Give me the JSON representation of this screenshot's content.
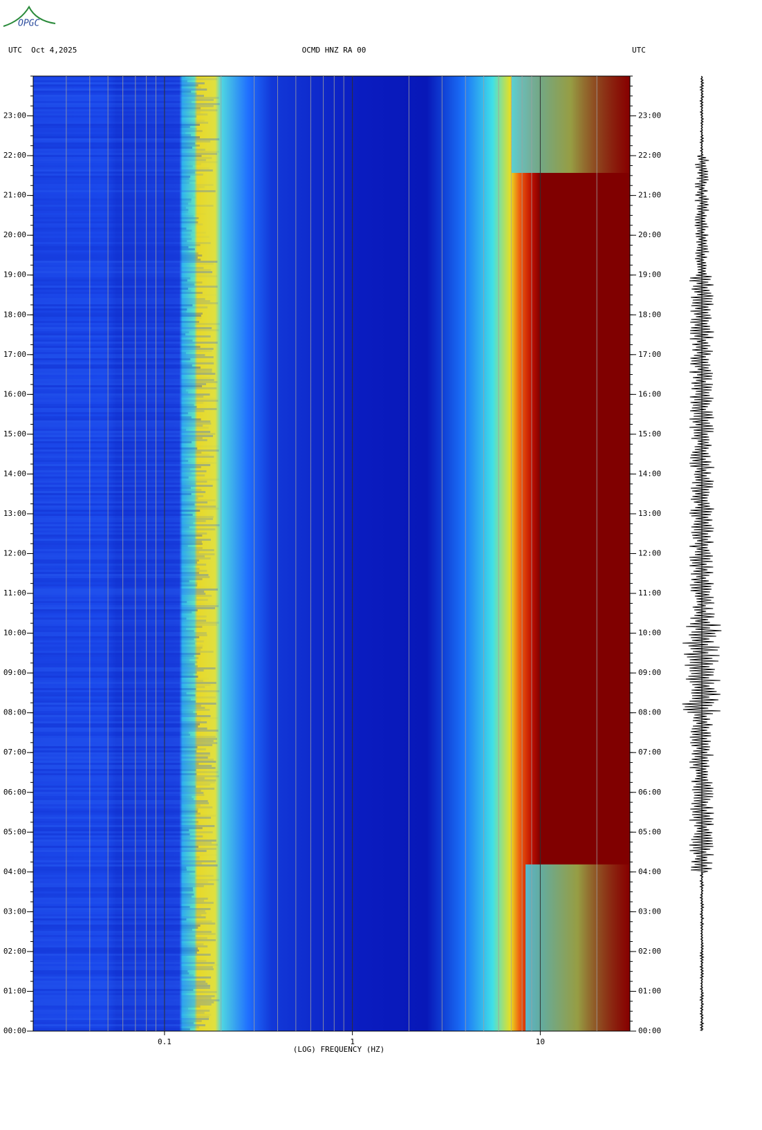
{
  "logo": "OPGC",
  "chart_data": {
    "type": "spectrogram",
    "header_left": "UTC  Oct 4,2025",
    "title": "OCMD HNZ RA 00",
    "header_right": "UTC",
    "x_label": "(LOG) FREQUENCY (HZ)",
    "xscale": "log",
    "xlim": [
      0.02,
      30
    ],
    "xticks": [
      0.1,
      1,
      10
    ],
    "ylim": [
      0,
      24
    ],
    "yticks": [
      {
        "value": 0,
        "label": "00:00"
      },
      {
        "value": 1,
        "label": "01:00"
      },
      {
        "value": 2,
        "label": "02:00"
      },
      {
        "value": 3,
        "label": "03:00"
      },
      {
        "value": 4,
        "label": "04:00"
      },
      {
        "value": 5,
        "label": "05:00"
      },
      {
        "value": 6,
        "label": "06:00"
      },
      {
        "value": 7,
        "label": "07:00"
      },
      {
        "value": 8,
        "label": "08:00"
      },
      {
        "value": 9,
        "label": "09:00"
      },
      {
        "value": 10,
        "label": "10:00"
      },
      {
        "value": 11,
        "label": "11:00"
      },
      {
        "value": 12,
        "label": "12:00"
      },
      {
        "value": 13,
        "label": "13:00"
      },
      {
        "value": 14,
        "label": "14:00"
      },
      {
        "value": 15,
        "label": "15:00"
      },
      {
        "value": 16,
        "label": "16:00"
      },
      {
        "value": 17,
        "label": "17:00"
      },
      {
        "value": 18,
        "label": "18:00"
      },
      {
        "value": 19,
        "label": "19:00"
      },
      {
        "value": 20,
        "label": "20:00"
      },
      {
        "value": 21,
        "label": "21:00"
      },
      {
        "value": 22,
        "label": "22:00"
      },
      {
        "value": 23,
        "label": "23:00"
      }
    ],
    "grid": true
  }
}
